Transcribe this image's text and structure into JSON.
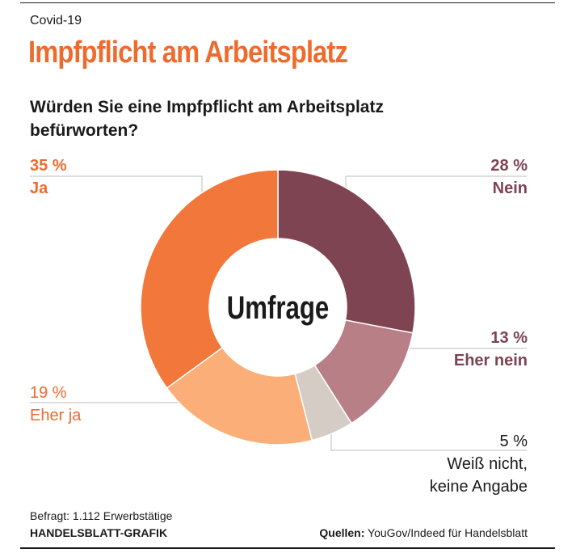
{
  "kicker": "Covid-19",
  "title": "Impfpflicht am Arbeitsplatz",
  "question": "Würden Sie eine Impfpflicht am Arbeitsplatz befürworten?",
  "center_label": "Umfrage",
  "chart_data": {
    "type": "pie",
    "title": "Würden Sie eine Impfpflicht am Arbeitsplatz befürworten?",
    "categories": [
      "Nein",
      "Eher nein",
      "Weiß nicht, keine Angabe",
      "Eher ja",
      "Ja"
    ],
    "values": [
      28,
      13,
      5,
      19,
      35
    ],
    "unit": "%",
    "colors": [
      "#7e4452",
      "#b87f86",
      "#d6ccc6",
      "#fbae77",
      "#f2773a"
    ],
    "labels": [
      {
        "pct": "28 %",
        "name": "Nein",
        "color": "#7e4452",
        "bold": true
      },
      {
        "pct": "13 %",
        "name": "Eher nein",
        "color": "#7e4452",
        "bold": true
      },
      {
        "pct": "5 %",
        "name": "Weiß nicht,",
        "name2": "keine Angabe",
        "color": "#1a1a1a",
        "bold": false
      },
      {
        "pct": "19 %",
        "name": "Eher ja",
        "color": "#ee6b2d",
        "bold": false
      },
      {
        "pct": "35 %",
        "name": "Ja",
        "color": "#ee6b2d",
        "bold": true
      }
    ]
  },
  "footer": {
    "respondents": "Befragt: 1.112 Erwerbstätige",
    "credit": "HANDELSBLATT-GRAFIK",
    "sources_label": "Quellen:",
    "sources_value": "YouGov/Indeed für Handelsblatt"
  }
}
